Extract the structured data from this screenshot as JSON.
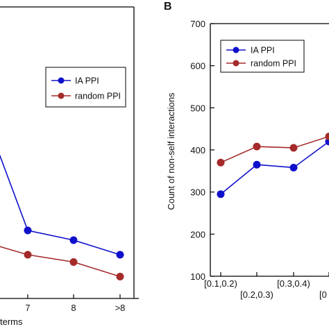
{
  "chart_data": [
    {
      "type": "line",
      "panel_label": "",
      "xlabel": "terms",
      "ylabel": "",
      "categories": [
        "",
        "7",
        "8",
        ">8"
      ],
      "series": [
        {
          "name": "IA PPI",
          "color": "#1010cc",
          "values": [
            null,
            0.74,
            0.72,
            0.69
          ]
        },
        {
          "name": "random PPI",
          "color": "#a52a2a",
          "values": [
            null,
            0.69,
            0.675,
            0.645
          ]
        }
      ],
      "partial_points": {
        "IA PPI": 0.97,
        "random PPI": 0.715
      },
      "ylim": [
        0.6,
        1.2
      ],
      "legend": {
        "entries": [
          "IA PPI",
          "random PPI"
        ],
        "placement": "top-right"
      }
    },
    {
      "type": "line",
      "panel_label": "B",
      "xlabel": "",
      "ylabel": "Count of non-self interactions",
      "categories": [
        "[0.1,0.2)",
        "[0.2,0.3)",
        "[0.3,0.4)",
        "[0"
      ],
      "series": [
        {
          "name": "IA PPI",
          "color": "#1010cc",
          "values": [
            295,
            365,
            358,
            420
          ]
        },
        {
          "name": "random PPI",
          "color": "#a52a2a",
          "values": [
            370,
            408,
            405,
            432
          ]
        }
      ],
      "yticks": [
        100,
        200,
        300,
        400,
        500,
        600,
        700
      ],
      "ylim": [
        100,
        700
      ],
      "legend": {
        "entries": [
          "IA PPI",
          "random PPI"
        ],
        "placement": "top-left"
      }
    }
  ]
}
